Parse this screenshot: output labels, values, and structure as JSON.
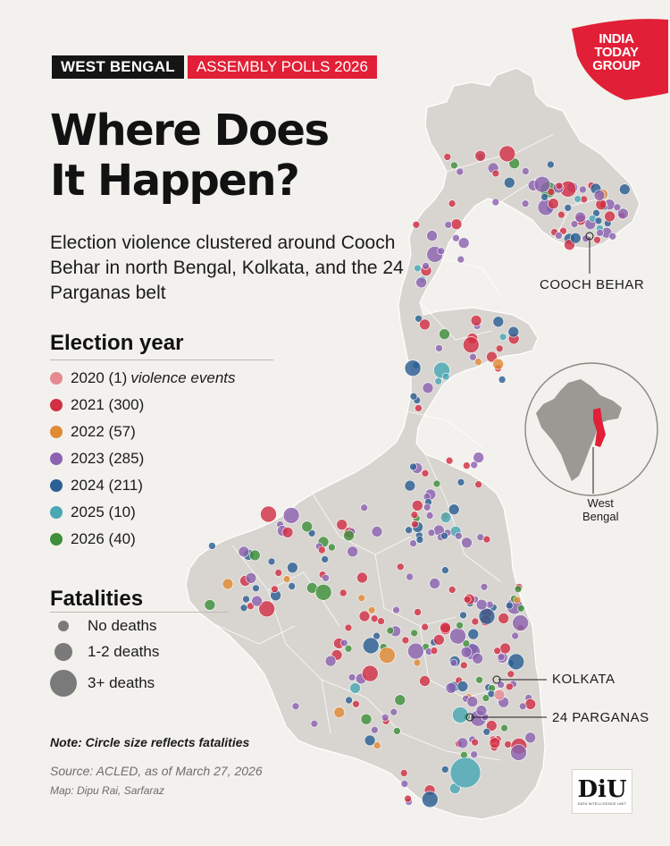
{
  "header": {
    "state_tag": "WEST BENGAL",
    "event_tag": "ASSEMBLY POLLS 2026",
    "publisher_logo": [
      "INDIA",
      "TODAY",
      "GROUP"
    ]
  },
  "title_lines": [
    "Where Does",
    "It Happen?"
  ],
  "subtitle": "Election violence clustered around Cooch Behar in north Bengal, Kolkata, and the 24 Parganas belt",
  "legend_year": {
    "heading": "Election year",
    "note": "violence events",
    "items": [
      {
        "label": "2020 (1)",
        "color": "#e58a92"
      },
      {
        "label": "2021 (300)",
        "color": "#d23044"
      },
      {
        "label": "2022 (57)",
        "color": "#e08a35"
      },
      {
        "label": "2023 (285)",
        "color": "#8c63b0"
      },
      {
        "label": "2024 (211)",
        "color": "#2c5f93"
      },
      {
        "label": "2025 (10)",
        "color": "#4ba7b4"
      },
      {
        "label": "2026 (40)",
        "color": "#3f8f3a"
      }
    ]
  },
  "legend_fatalities": {
    "heading": "Fatalities",
    "items": [
      {
        "label": "No deaths"
      },
      {
        "label": "1-2 deaths"
      },
      {
        "label": "3+ deaths"
      }
    ]
  },
  "note": "Note: Circle size reflects fatalities",
  "source": "Source: ACLED, as of March 27, 2026",
  "credit": "Map: Dipu Rai, Sarfaraz",
  "callouts": {
    "cooch_behar": "COOCH BEHAR",
    "kolkata": "KOLKATA",
    "parganas": "24 PARGANAS"
  },
  "inset": {
    "label_line1": "West",
    "label_line2": "Bengal",
    "highlight_color": "#e11f36"
  },
  "branding": {
    "diu": "DiU",
    "diu_sub": "DATA INTELLIGENCE UNIT"
  },
  "colors": {
    "accent": "#e11f36",
    "land": "#d8d5d0",
    "background": "#f3f1ed"
  }
}
